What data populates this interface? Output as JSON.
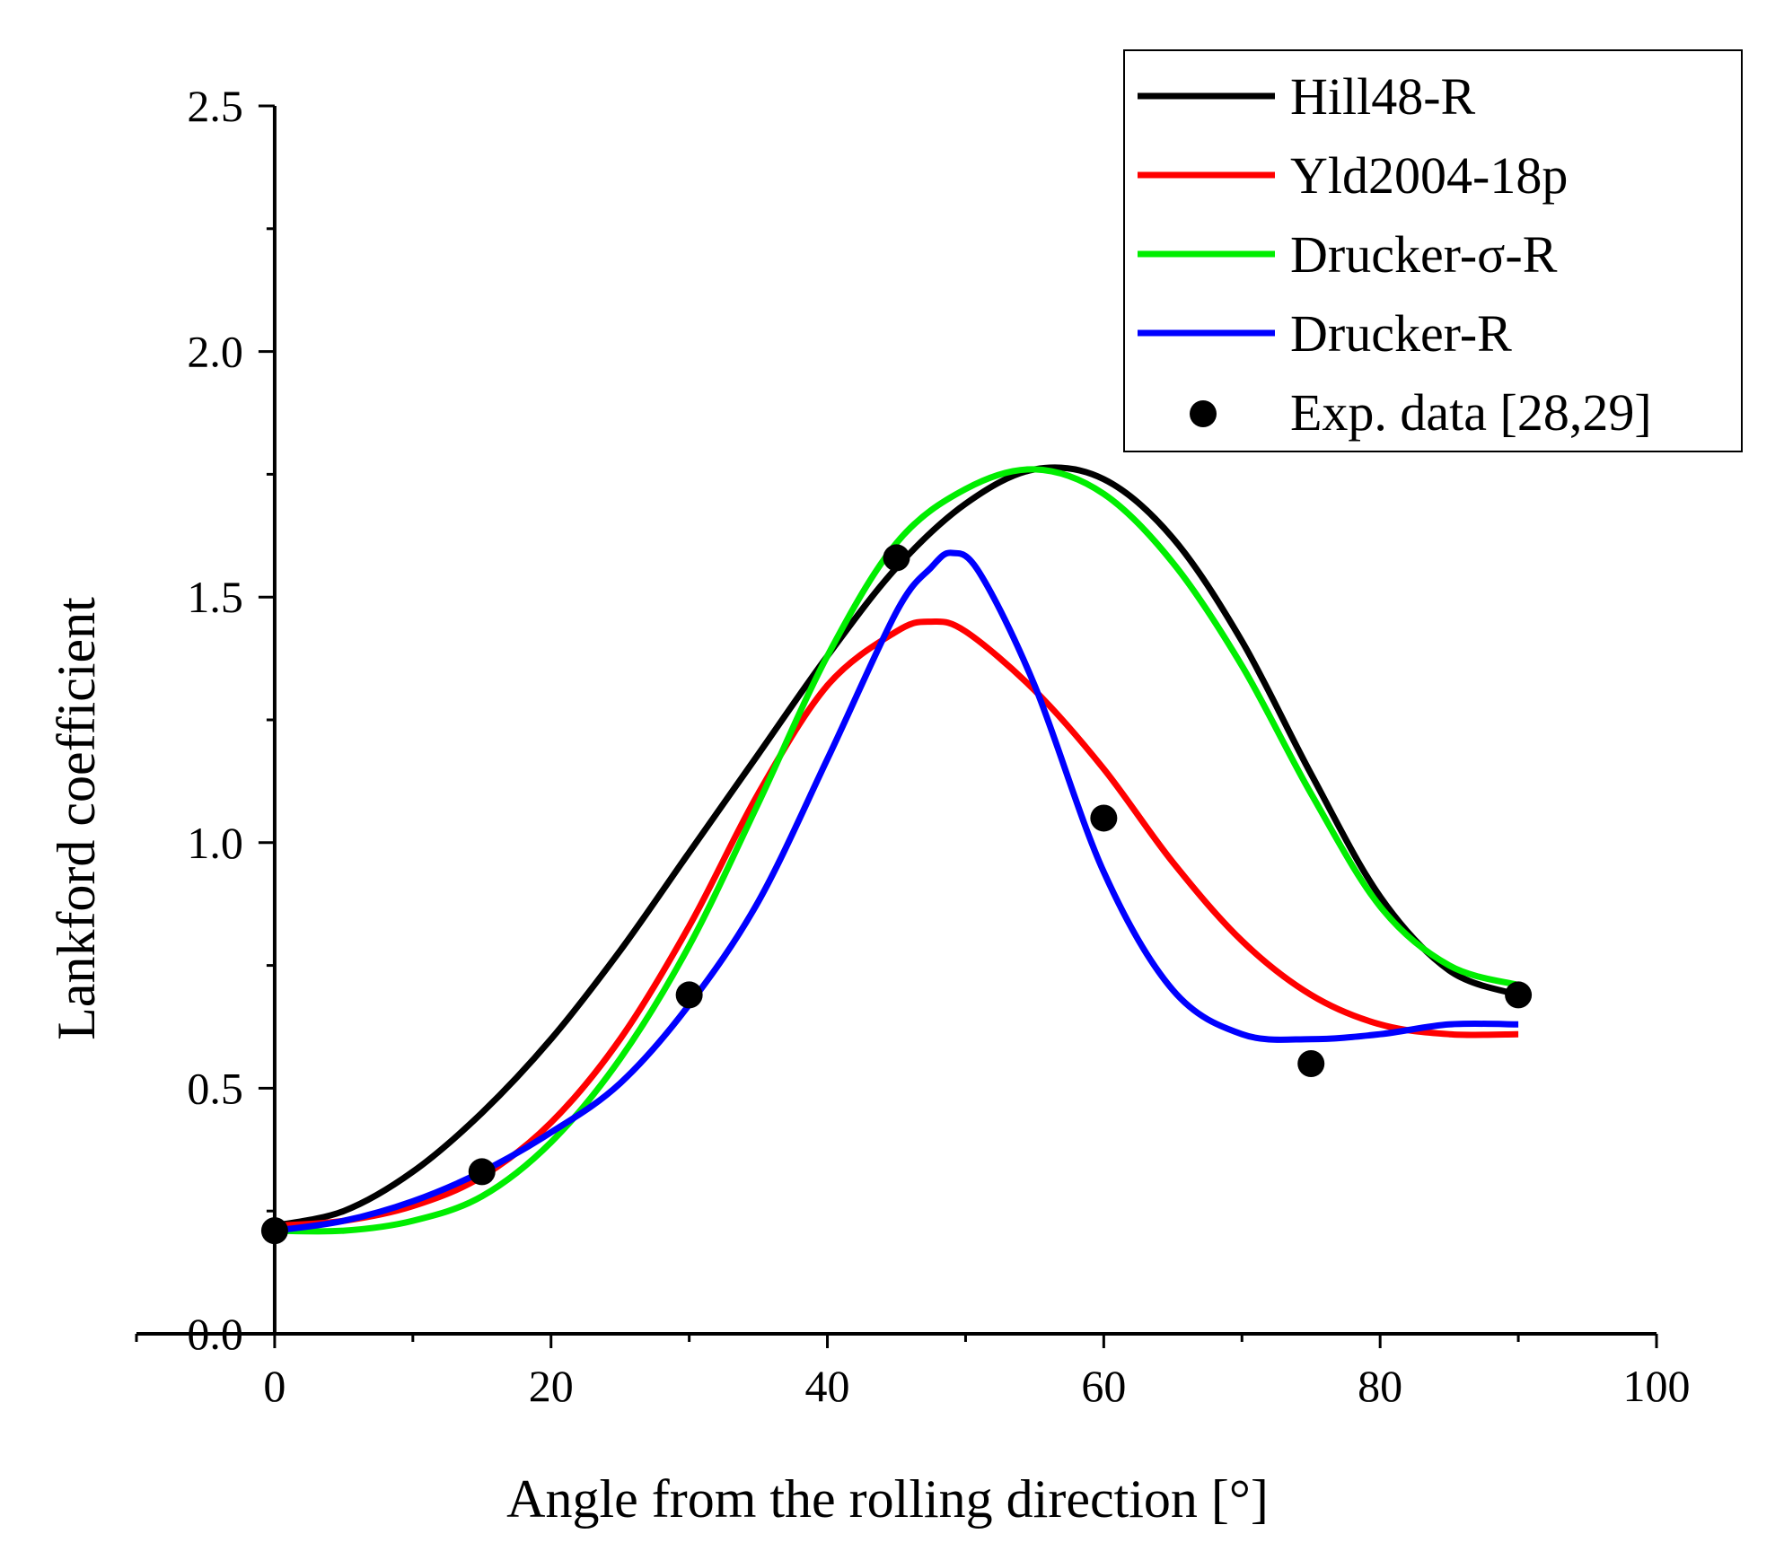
{
  "chart_data": {
    "type": "line",
    "title": "",
    "xlabel": "Angle from the rolling direction [°]",
    "ylabel": "Lankford coefficient",
    "xlim": [
      -10,
      100
    ],
    "ylim": [
      0,
      2.5
    ],
    "x_ticks": [
      {
        "value": 0,
        "label": "0"
      },
      {
        "value": 20,
        "label": "20"
      },
      {
        "value": 40,
        "label": "40"
      },
      {
        "value": 60,
        "label": "60"
      },
      {
        "value": 80,
        "label": "80"
      },
      {
        "value": 100,
        "label": "100"
      }
    ],
    "y_ticks": [
      {
        "value": 0,
        "label": "0.0"
      },
      {
        "value": 0.5,
        "label": "0.5"
      },
      {
        "value": 1.0,
        "label": "1.0"
      },
      {
        "value": 1.5,
        "label": "1.5"
      },
      {
        "value": 2.0,
        "label": "2.0"
      },
      {
        "value": 2.5,
        "label": "2.5"
      }
    ],
    "grid": false,
    "legend_position": "top-right",
    "series": [
      {
        "name": "Hill48-R",
        "kind": "line",
        "color": "#000000",
        "x": [
          0,
          5,
          10,
          15,
          20,
          25,
          30,
          35,
          40,
          45,
          50,
          55,
          60,
          65,
          70,
          75,
          80,
          85,
          90
        ],
        "y": [
          0.22,
          0.25,
          0.33,
          0.45,
          0.6,
          0.78,
          0.98,
          1.18,
          1.38,
          1.56,
          1.69,
          1.76,
          1.74,
          1.62,
          1.41,
          1.14,
          0.89,
          0.74,
          0.69
        ]
      },
      {
        "name": "Yld2004-18p",
        "kind": "line",
        "color": "#ff0000",
        "x": [
          0,
          5,
          10,
          15,
          20,
          25,
          30,
          35,
          40,
          45,
          47.5,
          50,
          55,
          60,
          65,
          70,
          75,
          80,
          85,
          90
        ],
        "y": [
          0.22,
          0.23,
          0.26,
          0.32,
          0.43,
          0.6,
          0.83,
          1.1,
          1.32,
          1.43,
          1.45,
          1.43,
          1.31,
          1.15,
          0.96,
          0.8,
          0.69,
          0.63,
          0.61,
          0.61
        ]
      },
      {
        "name": "Drucker-σ-R",
        "kind": "line",
        "color": "#00ee00",
        "x": [
          0,
          5,
          10,
          15,
          20,
          25,
          30,
          35,
          40,
          45,
          50,
          55,
          60,
          65,
          70,
          75,
          80,
          85,
          90
        ],
        "y": [
          0.21,
          0.21,
          0.23,
          0.28,
          0.39,
          0.56,
          0.79,
          1.08,
          1.38,
          1.61,
          1.72,
          1.76,
          1.71,
          1.57,
          1.36,
          1.1,
          0.87,
          0.75,
          0.71
        ]
      },
      {
        "name": "Drucker-R",
        "kind": "line",
        "color": "#0000ff",
        "x": [
          0,
          5,
          10,
          15,
          20,
          25,
          30,
          35,
          40,
          45,
          47.5,
          49,
          51,
          55,
          60,
          65,
          70,
          75,
          80,
          85,
          90
        ],
        "y": [
          0.21,
          0.23,
          0.27,
          0.33,
          0.41,
          0.51,
          0.67,
          0.88,
          1.17,
          1.47,
          1.56,
          1.59,
          1.55,
          1.32,
          0.94,
          0.7,
          0.61,
          0.6,
          0.61,
          0.63,
          0.63
        ]
      },
      {
        "name": "Exp. data [28,29]",
        "kind": "scatter",
        "color": "#000000",
        "x": [
          0,
          15,
          30,
          45,
          60,
          75,
          90
        ],
        "y": [
          0.21,
          0.33,
          0.69,
          1.58,
          1.05,
          0.55,
          0.69
        ]
      }
    ]
  }
}
